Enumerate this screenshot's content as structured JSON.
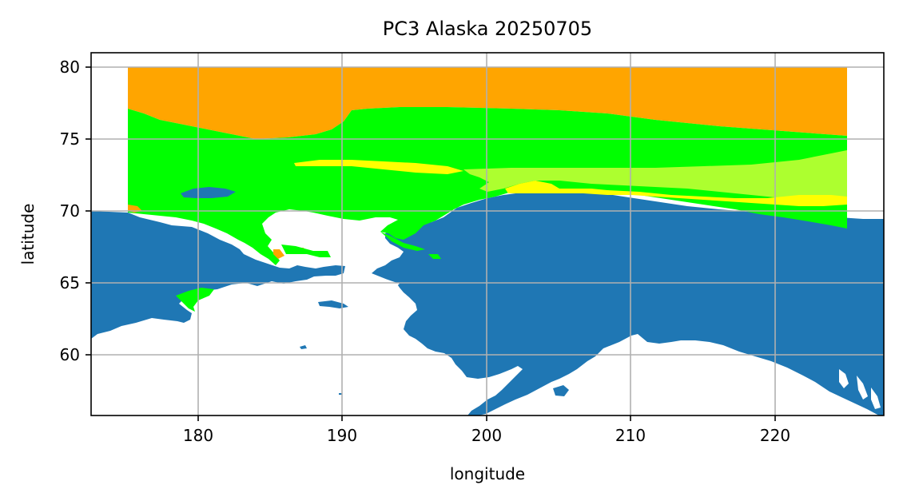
{
  "chart_data": {
    "type": "map",
    "title": "PC3 Alaska 20250705",
    "xlabel": "longitude",
    "ylabel": "latitude",
    "xlim": [
      172.5,
      227.5
    ],
    "ylim": [
      55.7,
      81.2
    ],
    "xticks": [
      180,
      190,
      200,
      210,
      220
    ],
    "yticks": [
      60,
      65,
      70,
      75,
      80
    ],
    "grid": true,
    "land_color": "#1f77b4",
    "category_colors": {
      "orange": "#FFA500",
      "green": "#00FF00",
      "yellow": "#FFFF00",
      "greenyellow": "#ADFF2F"
    }
  }
}
